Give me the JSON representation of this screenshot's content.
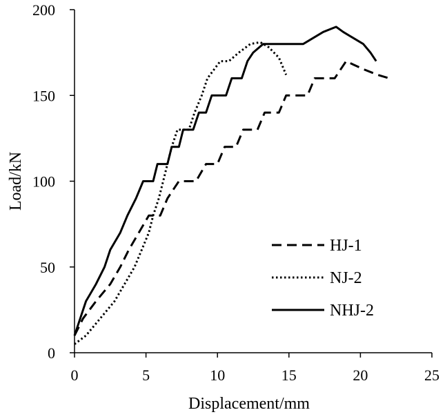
{
  "chart_data": {
    "type": "line",
    "title": "",
    "xlabel": "Displacement/mm",
    "ylabel": "Load/kN",
    "xlim": [
      0,
      25
    ],
    "ylim": [
      0,
      200
    ],
    "xticks": [
      0,
      5,
      10,
      15,
      20,
      25
    ],
    "yticks": [
      0,
      50,
      100,
      150,
      200
    ],
    "grid": false,
    "legend_position": "bottom-right",
    "series": [
      {
        "name": "HJ-1",
        "style": "dashed",
        "color": "#000000",
        "points": [
          [
            0,
            10
          ],
          [
            0.6,
            20
          ],
          [
            1.5,
            30
          ],
          [
            2.5,
            40
          ],
          [
            3.2,
            50
          ],
          [
            3.8,
            60
          ],
          [
            4.5,
            70
          ],
          [
            5.2,
            80
          ],
          [
            6.0,
            80
          ],
          [
            6.5,
            90
          ],
          [
            7.3,
            100
          ],
          [
            8.5,
            100
          ],
          [
            9.2,
            110
          ],
          [
            10.0,
            110
          ],
          [
            10.5,
            120
          ],
          [
            11.3,
            120
          ],
          [
            11.8,
            130
          ],
          [
            12.8,
            130
          ],
          [
            13.3,
            140
          ],
          [
            14.3,
            140
          ],
          [
            14.8,
            150
          ],
          [
            16.3,
            150
          ],
          [
            16.8,
            160
          ],
          [
            18.2,
            160
          ],
          [
            19.0,
            170
          ],
          [
            19.5,
            168
          ],
          [
            20.3,
            165
          ],
          [
            21.2,
            162
          ],
          [
            22.0,
            160
          ]
        ]
      },
      {
        "name": "NJ-2",
        "style": "dotted",
        "color": "#000000",
        "points": [
          [
            0,
            5
          ],
          [
            0.8,
            10
          ],
          [
            1.8,
            20
          ],
          [
            2.8,
            30
          ],
          [
            3.5,
            40
          ],
          [
            4.2,
            50
          ],
          [
            4.7,
            60
          ],
          [
            5.2,
            70
          ],
          [
            5.5,
            80
          ],
          [
            5.9,
            90
          ],
          [
            6.2,
            100
          ],
          [
            6.5,
            110
          ],
          [
            6.8,
            120
          ],
          [
            7.2,
            130
          ],
          [
            8.0,
            130
          ],
          [
            8.4,
            140
          ],
          [
            8.9,
            150
          ],
          [
            9.3,
            160
          ],
          [
            10.2,
            170
          ],
          [
            10.8,
            170
          ],
          [
            11.5,
            175
          ],
          [
            12.3,
            180
          ],
          [
            13.0,
            181
          ],
          [
            13.6,
            178
          ],
          [
            14.3,
            172
          ],
          [
            14.8,
            162
          ]
        ]
      },
      {
        "name": "NHJ-2",
        "style": "solid",
        "color": "#000000",
        "points": [
          [
            0,
            10
          ],
          [
            0.4,
            20
          ],
          [
            0.8,
            30
          ],
          [
            1.5,
            40
          ],
          [
            2.1,
            50
          ],
          [
            2.5,
            60
          ],
          [
            3.2,
            70
          ],
          [
            3.7,
            80
          ],
          [
            4.3,
            90
          ],
          [
            4.8,
            100
          ],
          [
            5.5,
            100
          ],
          [
            5.8,
            110
          ],
          [
            6.5,
            110
          ],
          [
            6.8,
            120
          ],
          [
            7.3,
            120
          ],
          [
            7.6,
            130
          ],
          [
            8.3,
            130
          ],
          [
            8.7,
            140
          ],
          [
            9.2,
            140
          ],
          [
            9.6,
            150
          ],
          [
            10.6,
            150
          ],
          [
            11.0,
            160
          ],
          [
            11.7,
            160
          ],
          [
            12.1,
            170
          ],
          [
            12.5,
            175
          ],
          [
            13.2,
            180
          ],
          [
            16.0,
            180
          ],
          [
            16.6,
            183
          ],
          [
            17.4,
            187
          ],
          [
            18.3,
            190
          ],
          [
            18.8,
            187
          ],
          [
            19.4,
            184
          ],
          [
            20.2,
            180
          ],
          [
            20.7,
            175
          ],
          [
            21.1,
            170
          ]
        ]
      }
    ]
  }
}
